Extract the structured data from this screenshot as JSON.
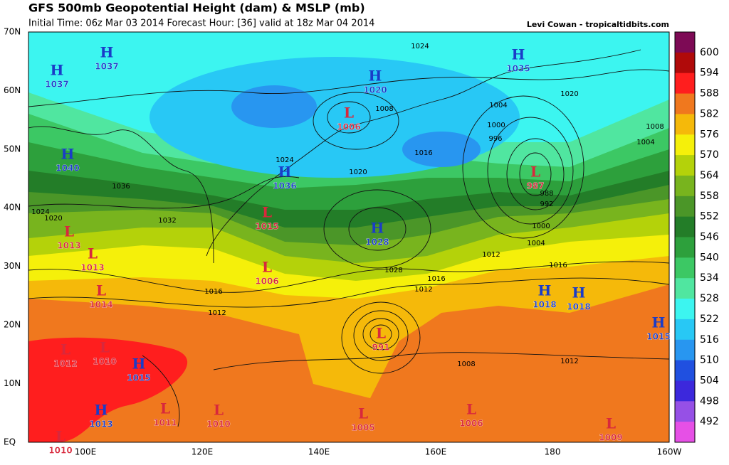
{
  "header": {
    "title": "GFS 500mb Geopotential Height (dam) & MSLP (mb)",
    "subtitle": "Initial Time: 06z Mar 03 2014 Forecast Hour: [36] valid at 18z Mar 04 2014",
    "credit": "Levi Cowan - tropicaltidbits.com"
  },
  "lat_labels": [
    "70N",
    "60N",
    "50N",
    "40N",
    "30N",
    "20N",
    "10N",
    "EQ"
  ],
  "lon_labels": [
    "100E",
    "120E",
    "140E",
    "160E",
    "180",
    "160W"
  ],
  "colorbar": {
    "values": [
      600,
      594,
      588,
      582,
      576,
      570,
      564,
      558,
      552,
      546,
      540,
      534,
      528,
      522,
      516,
      510,
      504,
      498,
      492
    ],
    "colors": [
      "#7d0a55",
      "#b00a0a",
      "#ff1e1e",
      "#f0781e",
      "#f5b90a",
      "#f5f00a",
      "#b4d20a",
      "#78b41e",
      "#4b9628",
      "#237d28",
      "#2da03c",
      "#3cc864",
      "#50e6a0",
      "#3cf5f0",
      "#28c8f5",
      "#2896f0",
      "#2050e0",
      "#3c28dc",
      "#9650e6",
      "#e650e6"
    ]
  },
  "pressure_centers": [
    {
      "letter": "H",
      "value": "1037"
    },
    {
      "letter": "H",
      "value": "1037"
    },
    {
      "letter": "H",
      "value": "1040"
    },
    {
      "letter": "H",
      "value": "1036"
    },
    {
      "letter": "L",
      "value": "1006"
    },
    {
      "letter": "H",
      "value": "1020"
    },
    {
      "letter": "H",
      "value": "1035"
    },
    {
      "letter": "L",
      "value": "987"
    },
    {
      "letter": "H",
      "value": "1028"
    },
    {
      "letter": "L",
      "value": "1015"
    },
    {
      "letter": "L",
      "value": "1013"
    },
    {
      "letter": "L",
      "value": "1013"
    },
    {
      "letter": "L",
      "value": "1006"
    },
    {
      "letter": "L",
      "value": "1014"
    },
    {
      "letter": "H",
      "value": "1018"
    },
    {
      "letter": "H",
      "value": "1018"
    },
    {
      "letter": "H",
      "value": "1015"
    },
    {
      "letter": "L",
      "value": "991"
    },
    {
      "letter": "L",
      "value": "1012"
    },
    {
      "letter": "L",
      "value": "1010"
    },
    {
      "letter": "H",
      "value": "1015"
    },
    {
      "letter": "H",
      "value": "1013"
    },
    {
      "letter": "L",
      "value": "1011"
    },
    {
      "letter": "L",
      "value": "1010"
    },
    {
      "letter": "L",
      "value": "1005"
    },
    {
      "letter": "L",
      "value": "1006"
    },
    {
      "letter": "L",
      "value": "1009"
    },
    {
      "letter": "L",
      "value": "1010"
    }
  ],
  "isobar_labels": [
    "1024",
    "1016",
    "1008",
    "1004",
    "1000",
    "996",
    "992",
    "988",
    "1012",
    "1020",
    "1028",
    "1032",
    "1036",
    "1024",
    "1020",
    "1016",
    "1012",
    "1008",
    "1012",
    "1004",
    "1000",
    "1016",
    "1024",
    "1020",
    "1016",
    "1012",
    "1008",
    "1004"
  ]
}
